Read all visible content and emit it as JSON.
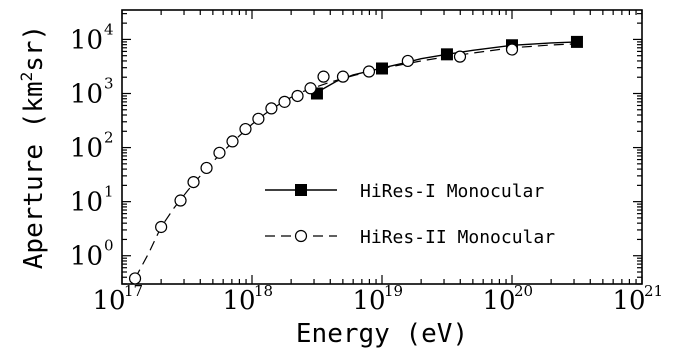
{
  "chart_data": {
    "type": "line",
    "title": "",
    "xlabel": "Energy (eV)",
    "ylabel": "Aperture (km²sr)",
    "ylabel_parts": {
      "before": "Aperture (km",
      "sup": "2",
      "after": "sr)"
    },
    "x_scale": "log",
    "y_scale": "log",
    "xlim": [
      1e+17,
      1e+21
    ],
    "ylim": [
      0.3,
      35000
    ],
    "x_ticks": [
      {
        "value": 1e+17,
        "base": "10",
        "exp": "17"
      },
      {
        "value": 1e+18,
        "base": "10",
        "exp": "18"
      },
      {
        "value": 1e+19,
        "base": "10",
        "exp": "19"
      },
      {
        "value": 1e+20,
        "base": "10",
        "exp": "20"
      },
      {
        "value": 1e+21,
        "base": "10",
        "exp": "21"
      }
    ],
    "y_ticks": [
      {
        "value": 1,
        "base": "10",
        "exp": "0"
      },
      {
        "value": 10,
        "base": "10",
        "exp": "1"
      },
      {
        "value": 100,
        "base": "10",
        "exp": "2"
      },
      {
        "value": 1000,
        "base": "10",
        "exp": "3"
      },
      {
        "value": 10000,
        "base": "10",
        "exp": "4"
      }
    ],
    "grid": false,
    "legend_position": "center-right",
    "series": [
      {
        "name": "HiRes-I Monocular",
        "marker": "filled-square",
        "line": "solid",
        "x": [
          3.16e+18,
          1e+19,
          3.16e+19,
          1e+20,
          3.16e+20
        ],
        "y": [
          1000,
          2900,
          5300,
          7800,
          9000
        ],
        "curve_x": [
          3.16e+18,
          4.5e+18,
          6e+18,
          1e+19,
          1.5e+19,
          2e+19,
          3.16e+19,
          5e+19,
          1e+20,
          2e+20,
          3.16e+20
        ],
        "curve_y": [
          1050,
          1700,
          2200,
          2950,
          3700,
          4400,
          5300,
          6300,
          7800,
          8600,
          9000
        ]
      },
      {
        "name": "HiRes-II Monocular",
        "marker": "open-circle",
        "line": "dashed",
        "x": [
          1.26e+17,
          2e+17,
          2.82e+17,
          3.55e+17,
          4.47e+17,
          5.62e+17,
          7.08e+17,
          8.91e+17,
          1.12e+18,
          1.41e+18,
          1.78e+18,
          2.24e+18,
          2.82e+18,
          3.55e+18,
          5.01e+18,
          7.94e+18,
          1.58e+19,
          3.98e+19,
          1e+20
        ],
        "y": [
          0.38,
          3.4,
          10.5,
          23,
          42,
          80,
          130,
          220,
          340,
          530,
          700,
          900,
          1250,
          2050,
          2050,
          2550,
          4000,
          4800,
          6500
        ],
        "curve_x": [
          1.26e+17,
          1.6e+17,
          2e+17,
          2.5e+17,
          3.2e+17,
          4e+17,
          5e+17,
          6.3e+17,
          8e+17,
          1e+18,
          1.26e+18,
          1.6e+18,
          2e+18,
          2.5e+18,
          3.2e+18,
          4e+18,
          5e+18,
          6.3e+18,
          8e+18,
          1e+19,
          1.5e+19,
          2e+19,
          3e+19,
          5e+19,
          1e+20,
          2e+20,
          3.16e+20
        ],
        "curve_y": [
          0.38,
          1.1,
          3.4,
          7.5,
          16,
          30,
          55,
          95,
          165,
          270,
          420,
          620,
          850,
          1100,
          1350,
          1620,
          1900,
          2200,
          2550,
          2900,
          3500,
          4000,
          4700,
          5600,
          7000,
          7900,
          8300
        ]
      }
    ]
  }
}
